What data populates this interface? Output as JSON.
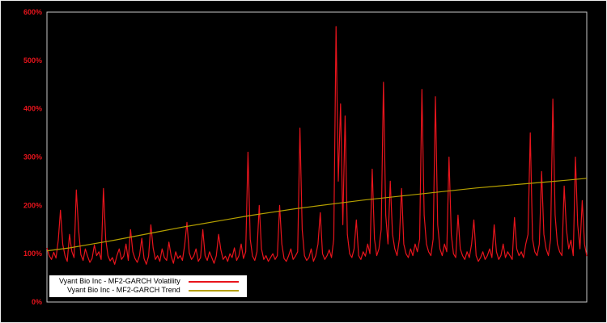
{
  "colors": {
    "background": "#000000",
    "plot_border": "#c8c8c8",
    "axis_label": "#e8141c",
    "volatility": "#e8141c",
    "trend": "#b5a000",
    "legend_bg": "#ffffff"
  },
  "y_axis": {
    "ticks": [
      "0%",
      "100%",
      "200%",
      "300%",
      "400%",
      "500%",
      "600%"
    ],
    "tick_values": [
      0,
      100,
      200,
      300,
      400,
      500,
      600
    ],
    "min": 0,
    "max": 600
  },
  "legend": {
    "items": [
      {
        "label": "Vyant Bio Inc - MF2-GARCH Volatility",
        "color": "#e8141c"
      },
      {
        "label": "Vyant Bio Inc - MF2-GARCH Trend",
        "color": "#b5a000"
      }
    ]
  },
  "chart_data": {
    "type": "line",
    "title": "",
    "xlabel": "",
    "ylabel": "",
    "y_unit": "%",
    "ylim": [
      0,
      600
    ],
    "grid": false,
    "legend_position": "bottom-left",
    "series": [
      {
        "name": "Vyant Bio Inc - MF2-GARCH Volatility",
        "color": "#e8141c",
        "values": [
          112,
          96,
          88,
          103,
          91,
          128,
          190,
          120,
          96,
          84,
          140,
          105,
          92,
          232,
          150,
          98,
          86,
          110,
          95,
          82,
          90,
          118,
          96,
          104,
          88,
          235,
          130,
          96,
          85,
          92,
          78,
          96,
          110,
          88,
          95,
          120,
          86,
          150,
          104,
          90,
          82,
          96,
          132,
          90,
          78,
          95,
          160,
          112,
          88,
          96,
          84,
          110,
          92,
          86,
          124,
          95,
          80,
          104,
          90,
          96,
          86,
          118,
          165,
          102,
          88,
          95,
          110,
          84,
          92,
          150,
          96,
          86,
          104,
          92,
          80,
          96,
          140,
          108,
          88,
          95,
          84,
          100,
          92,
          112,
          86,
          96,
          120,
          90,
          104,
          310,
          130,
          95,
          86,
          104,
          200,
          110,
          88,
          96,
          84,
          92,
          100,
          88,
          96,
          200,
          120,
          90,
          84,
          96,
          110,
          88,
          95,
          104,
          360,
          150,
          96,
          86,
          92,
          110,
          84,
          96,
          120,
          185,
          100,
          88,
          96,
          108,
          92,
          130,
          570,
          250,
          410,
          160,
          385,
          140,
          100,
          92,
          110,
          170,
          96,
          88,
          104,
          95,
          120,
          100,
          275,
          130,
          96,
          110,
          150,
          455,
          180,
          120,
          250,
          140,
          110,
          96,
          130,
          235,
          120,
          100,
          92,
          110,
          96,
          120,
          104,
          130,
          440,
          180,
          120,
          104,
          96,
          130,
          425,
          160,
          110,
          96,
          120,
          104,
          300,
          140,
          100,
          92,
          180,
          110,
          96,
          88,
          104,
          92,
          120,
          170,
          96,
          84,
          92,
          104,
          88,
          96,
          110,
          92,
          160,
          104,
          88,
          96,
          120,
          92,
          104,
          96,
          88,
          175,
          110,
          96,
          104,
          92,
          120,
          140,
          350,
          130,
          104,
          96,
          120,
          270,
          140,
          110,
          96,
          130,
          420,
          180,
          120,
          104,
          96,
          240,
          150,
          110,
          128,
          96,
          300,
          160,
          110,
          210,
          120,
          95
        ]
      },
      {
        "name": "Vyant Bio Inc - MF2-GARCH Trend",
        "color": "#b5a000",
        "x": [
          0,
          10,
          20,
          30,
          40,
          50,
          60,
          70,
          80,
          90,
          100,
          110,
          120,
          130,
          140,
          150,
          160,
          170,
          180,
          190,
          200,
          210,
          220,
          230,
          239
        ],
        "values": [
          106,
          112,
          120,
          128,
          137,
          146,
          155,
          163,
          171,
          179,
          186,
          193,
          199,
          205,
          211,
          216,
          221,
          226,
          231,
          236,
          240,
          244,
          248,
          252,
          256
        ]
      }
    ]
  }
}
